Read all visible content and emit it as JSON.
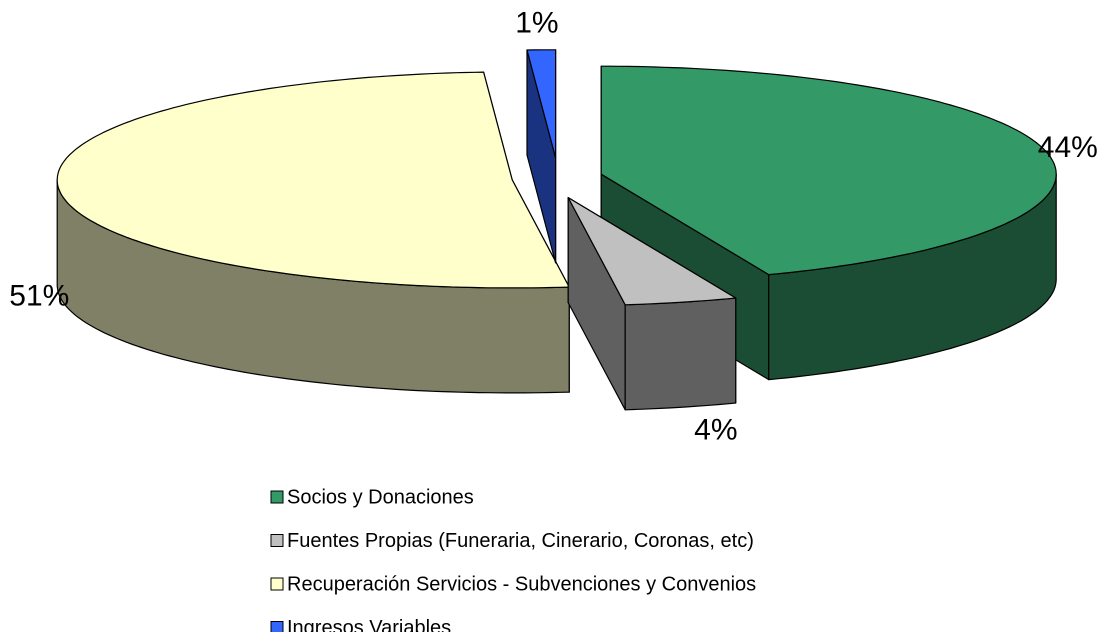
{
  "chart_data": {
    "type": "pie3d",
    "categories": [
      "Socios y Donaciones",
      "Fuentes Propias (Funeraria, Cinerario, Coronas, etc)",
      "Recuperación Servicios - Subvenciones y Convenios",
      "Ingresos Variables"
    ],
    "values": [
      44,
      4,
      51,
      1
    ],
    "value_labels": [
      "44%",
      "4%",
      "51%",
      "1%"
    ],
    "colors": [
      "#339966",
      "#c0c0c0",
      "#ffffcc",
      "#3366ff"
    ],
    "legend": "bottom"
  }
}
